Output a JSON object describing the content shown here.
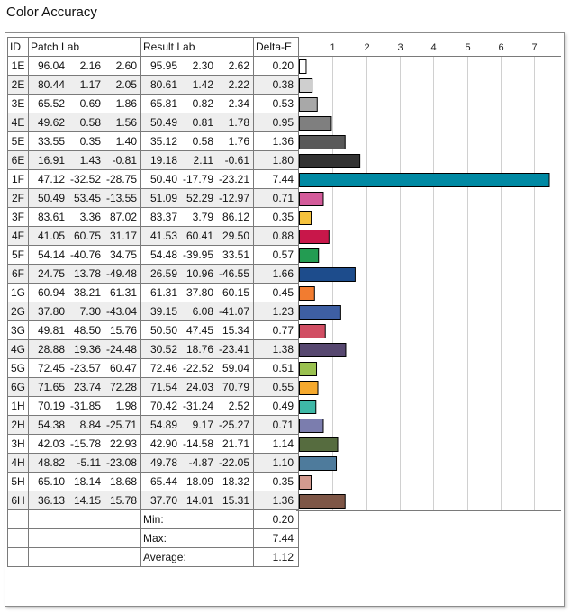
{
  "title": "Color Accuracy",
  "columns": [
    "ID",
    "Patch Lab",
    "Result Lab",
    "Delta-E"
  ],
  "rows": [
    {
      "id": "1E",
      "patch": [
        "96.04",
        "2.16",
        "2.60"
      ],
      "result": [
        "95.95",
        "2.30",
        "2.62"
      ],
      "de": "0.20"
    },
    {
      "id": "2E",
      "patch": [
        "80.44",
        "1.17",
        "2.05"
      ],
      "result": [
        "80.61",
        "1.42",
        "2.22"
      ],
      "de": "0.38"
    },
    {
      "id": "3E",
      "patch": [
        "65.52",
        "0.69",
        "1.86"
      ],
      "result": [
        "65.81",
        "0.82",
        "2.34"
      ],
      "de": "0.53"
    },
    {
      "id": "4E",
      "patch": [
        "49.62",
        "0.58",
        "1.56"
      ],
      "result": [
        "50.49",
        "0.81",
        "1.78"
      ],
      "de": "0.95"
    },
    {
      "id": "5E",
      "patch": [
        "33.55",
        "0.35",
        "1.40"
      ],
      "result": [
        "35.12",
        "0.58",
        "1.76"
      ],
      "de": "1.36"
    },
    {
      "id": "6E",
      "patch": [
        "16.91",
        "1.43",
        "-0.81"
      ],
      "result": [
        "19.18",
        "2.11",
        "-0.61"
      ],
      "de": "1.80"
    },
    {
      "id": "1F",
      "patch": [
        "47.12",
        "-32.52",
        "-28.75"
      ],
      "result": [
        "50.40",
        "-17.79",
        "-23.21"
      ],
      "de": "7.44"
    },
    {
      "id": "2F",
      "patch": [
        "50.49",
        "53.45",
        "-13.55"
      ],
      "result": [
        "51.09",
        "52.29",
        "-12.97"
      ],
      "de": "0.71"
    },
    {
      "id": "3F",
      "patch": [
        "83.61",
        "3.36",
        "87.02"
      ],
      "result": [
        "83.37",
        "3.79",
        "86.12"
      ],
      "de": "0.35"
    },
    {
      "id": "4F",
      "patch": [
        "41.05",
        "60.75",
        "31.17"
      ],
      "result": [
        "41.53",
        "60.41",
        "29.50"
      ],
      "de": "0.88"
    },
    {
      "id": "5F",
      "patch": [
        "54.14",
        "-40.76",
        "34.75"
      ],
      "result": [
        "54.48",
        "-39.95",
        "33.51"
      ],
      "de": "0.57"
    },
    {
      "id": "6F",
      "patch": [
        "24.75",
        "13.78",
        "-49.48"
      ],
      "result": [
        "26.59",
        "10.96",
        "-46.55"
      ],
      "de": "1.66"
    },
    {
      "id": "1G",
      "patch": [
        "60.94",
        "38.21",
        "61.31"
      ],
      "result": [
        "61.31",
        "37.80",
        "60.15"
      ],
      "de": "0.45"
    },
    {
      "id": "2G",
      "patch": [
        "37.80",
        "7.30",
        "-43.04"
      ],
      "result": [
        "39.15",
        "6.08",
        "-41.07"
      ],
      "de": "1.23"
    },
    {
      "id": "3G",
      "patch": [
        "49.81",
        "48.50",
        "15.76"
      ],
      "result": [
        "50.50",
        "47.45",
        "15.34"
      ],
      "de": "0.77"
    },
    {
      "id": "4G",
      "patch": [
        "28.88",
        "19.36",
        "-24.48"
      ],
      "result": [
        "30.52",
        "18.76",
        "-23.41"
      ],
      "de": "1.38"
    },
    {
      "id": "5G",
      "patch": [
        "72.45",
        "-23.57",
        "60.47"
      ],
      "result": [
        "72.46",
        "-22.52",
        "59.04"
      ],
      "de": "0.51"
    },
    {
      "id": "6G",
      "patch": [
        "71.65",
        "23.74",
        "72.28"
      ],
      "result": [
        "71.54",
        "24.03",
        "70.79"
      ],
      "de": "0.55"
    },
    {
      "id": "1H",
      "patch": [
        "70.19",
        "-31.85",
        "1.98"
      ],
      "result": [
        "70.42",
        "-31.24",
        "2.52"
      ],
      "de": "0.49"
    },
    {
      "id": "2H",
      "patch": [
        "54.38",
        "8.84",
        "-25.71"
      ],
      "result": [
        "54.89",
        "9.17",
        "-25.27"
      ],
      "de": "0.71"
    },
    {
      "id": "3H",
      "patch": [
        "42.03",
        "-15.78",
        "22.93"
      ],
      "result": [
        "42.90",
        "-14.58",
        "21.71"
      ],
      "de": "1.14"
    },
    {
      "id": "4H",
      "patch": [
        "48.82",
        "-5.11",
        "-23.08"
      ],
      "result": [
        "49.78",
        "-4.87",
        "-22.05"
      ],
      "de": "1.10"
    },
    {
      "id": "5H",
      "patch": [
        "65.10",
        "18.14",
        "18.68"
      ],
      "result": [
        "65.44",
        "18.09",
        "18.32"
      ],
      "de": "0.35"
    },
    {
      "id": "6H",
      "patch": [
        "36.13",
        "14.15",
        "15.78"
      ],
      "result": [
        "37.70",
        "14.01",
        "15.31"
      ],
      "de": "1.36"
    }
  ],
  "stats": [
    {
      "label": "Min:",
      "value": "0.20"
    },
    {
      "label": "Max:",
      "value": "7.44"
    },
    {
      "label": "Average:",
      "value": "1.12"
    }
  ],
  "chart_data": {
    "type": "bar",
    "orientation": "horizontal",
    "title": "Color Accuracy",
    "xlabel": "",
    "ylabel": "",
    "categories": [
      "1E",
      "2E",
      "3E",
      "4E",
      "5E",
      "6E",
      "1F",
      "2F",
      "3F",
      "4F",
      "5F",
      "6F",
      "1G",
      "2G",
      "3G",
      "4G",
      "5G",
      "6G",
      "1H",
      "2H",
      "3H",
      "4H",
      "5H",
      "6H"
    ],
    "values": [
      0.2,
      0.38,
      0.53,
      0.95,
      1.36,
      1.8,
      7.44,
      0.71,
      0.35,
      0.88,
      0.57,
      1.66,
      0.45,
      1.23,
      0.77,
      1.38,
      0.51,
      0.55,
      0.49,
      0.71,
      1.14,
      1.1,
      0.35,
      1.36
    ],
    "colors": [
      "#ffffff",
      "#cfcfcf",
      "#a8a8a8",
      "#7f7f7f",
      "#595959",
      "#333333",
      "#0089a3",
      "#d35b9a",
      "#f5c23c",
      "#c8174a",
      "#239c52",
      "#1d4c8c",
      "#f27c30",
      "#3e5fa3",
      "#d14e63",
      "#574870",
      "#9ac150",
      "#f5a92d",
      "#3eb8a7",
      "#7b7dae",
      "#566c3f",
      "#4e7b9c",
      "#d39a8f",
      "#7e5646"
    ],
    "xticks": [
      1,
      2,
      3,
      4,
      5,
      6,
      7
    ],
    "xlim": [
      0,
      7.5
    ],
    "grid": true
  }
}
